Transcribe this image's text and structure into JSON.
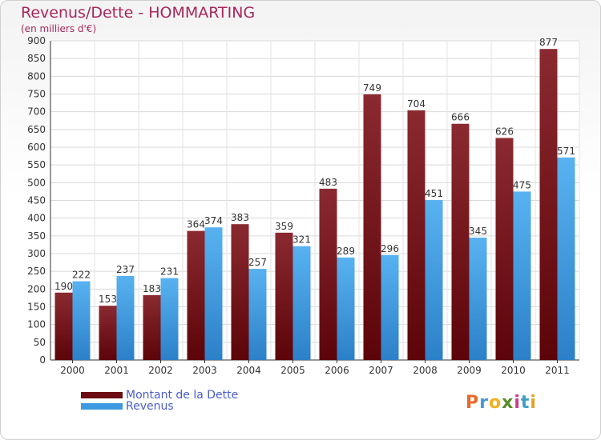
{
  "header": {
    "title": "Revenus/Dette - HOMMARTING",
    "subtitle": "(en milliers d'€)"
  },
  "legend": {
    "items": [
      {
        "label": "Montant de la Dette",
        "color": "#6b0d12"
      },
      {
        "label": "Revenus",
        "color": "#3d9ae0"
      }
    ]
  },
  "logo": {
    "text": "Proxiti",
    "colors": [
      "#e8692a",
      "#4a9ad6",
      "#f0b020",
      "#5a8a2a",
      "#d03a8a",
      "#3aa0c8",
      "#e6a020"
    ]
  },
  "chart_data": {
    "type": "bar",
    "categories": [
      "2000",
      "2001",
      "2002",
      "2003",
      "2004",
      "2005",
      "2006",
      "2007",
      "2008",
      "2009",
      "2010",
      "2011"
    ],
    "series": [
      {
        "name": "Montant de la Dette",
        "values": [
          190,
          153,
          183,
          364,
          383,
          359,
          483,
          749,
          704,
          666,
          626,
          877
        ],
        "color": "#6b0d12"
      },
      {
        "name": "Revenus",
        "values": [
          222,
          237,
          231,
          374,
          257,
          321,
          289,
          296,
          451,
          345,
          475,
          571
        ],
        "color": "#3d9ae0"
      }
    ],
    "ylim": [
      0,
      900
    ],
    "yticks": [
      0,
      50,
      100,
      150,
      200,
      250,
      300,
      350,
      400,
      450,
      500,
      550,
      600,
      650,
      700,
      750,
      800,
      850,
      900
    ],
    "grid": true,
    "legend_position": "bottom-left"
  }
}
